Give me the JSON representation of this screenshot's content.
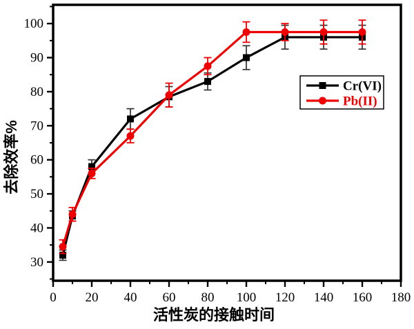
{
  "figure": {
    "background": "#ffffff",
    "border_color": "#000000"
  },
  "chart_data": {
    "type": "line",
    "title": "",
    "xlabel": "活性炭的接触时间",
    "ylabel": "去除效率%",
    "x": [
      5,
      10,
      20,
      40,
      60,
      80,
      100,
      120,
      140,
      160
    ],
    "series": [
      {
        "name": "Cr(VI)",
        "color": "#000000",
        "error_color": "#3a3a3a",
        "marker": "square",
        "values": [
          32,
          43.5,
          58,
          72,
          78.5,
          83,
          90,
          96,
          96,
          96
        ],
        "errors": [
          1.5,
          1.5,
          2,
          3,
          3,
          2.5,
          3.5,
          3.5,
          3.5,
          3.5
        ]
      },
      {
        "name": "Pb(II)",
        "color": "#ee0000",
        "error_color": "#ee0000",
        "marker": "circle",
        "values": [
          34.5,
          44,
          56,
          67,
          79,
          87.5,
          97.5,
          97.5,
          97.5,
          97.5
        ],
        "errors": [
          2,
          2,
          1.5,
          2,
          3.5,
          2.5,
          3,
          2.5,
          3.5,
          3.5
        ]
      }
    ],
    "xlim": [
      0,
      180
    ],
    "ylim": [
      24.5,
      105.5
    ],
    "x_major_ticks": [
      0,
      20,
      40,
      60,
      80,
      100,
      120,
      140,
      160,
      180
    ],
    "x_minor_ticks": [
      10,
      30,
      50,
      70,
      90,
      110,
      130,
      150,
      170
    ],
    "y_major_ticks": [
      30,
      40,
      50,
      60,
      70,
      80,
      90,
      100
    ],
    "y_minor_ticks": [
      25,
      35,
      45,
      55,
      65,
      75,
      85,
      95,
      105
    ],
    "grid": false,
    "legend_position": "middle-right",
    "legend_border": "#000000"
  }
}
